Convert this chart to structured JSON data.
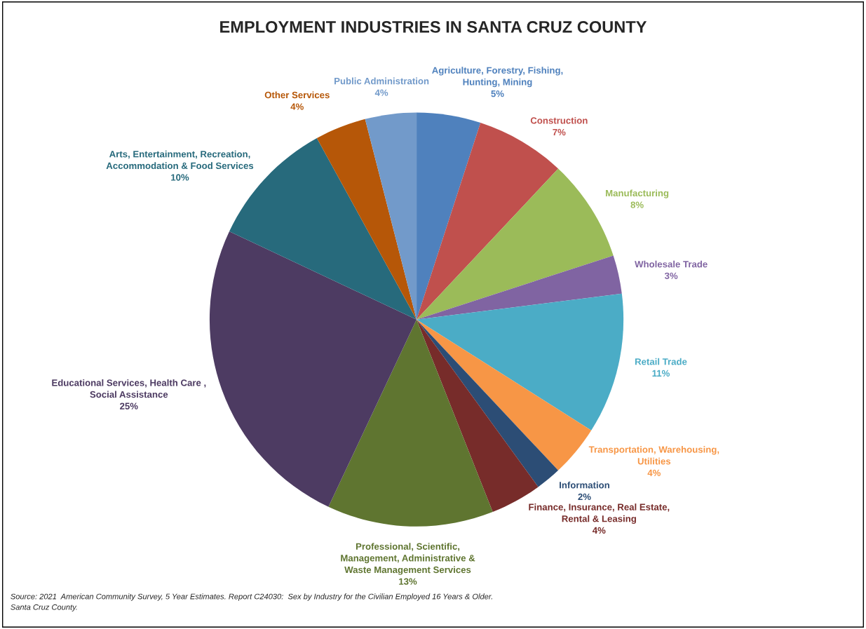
{
  "chart_data": {
    "type": "pie",
    "title": "EMPLOYMENT INDUSTRIES IN SANTA CRUZ COUNTY",
    "categories": [
      "Agriculture, Forestry, Fishing,\nHunting, Mining",
      "Construction",
      "Manufacturing",
      "Wholesale Trade",
      "Retail Trade",
      "Transportation, Warehousing,\nUtilities",
      "Information",
      "Finance, Insurance, Real Estate,\nRental & Leasing",
      "Professional, Scientific,\nManagement, Administrative &\nWaste Management Services",
      "Educational Services, Health Care ,\nSocial Assistance",
      "Arts, Entertainment, Recreation,\nAccommodation & Food Services",
      "Other Services",
      "Public Administration"
    ],
    "values": [
      5,
      7,
      8,
      3,
      11,
      4,
      2,
      4,
      13,
      25,
      10,
      4,
      4
    ],
    "colors": [
      "#4f81bd",
      "#c0504d",
      "#9bbb59",
      "#8064a2",
      "#4bacc6",
      "#f79646",
      "#2c4d75",
      "#772c2a",
      "#5f7530",
      "#4d3b62",
      "#276a7c",
      "#b65708",
      "#729aca"
    ],
    "value_labels": [
      "5%",
      "7%",
      "8%",
      "3%",
      "11%",
      "4%",
      "2%",
      "4%",
      "13%",
      "25%",
      "10%",
      "4%",
      "4%"
    ],
    "annotations": [
      "Source: 2021  American Community Survey, 5 Year Estimates. Report C24030:  Sex by Industry for the Civilian Employed 16 Years & Older.\nSanta Cruz County."
    ]
  }
}
